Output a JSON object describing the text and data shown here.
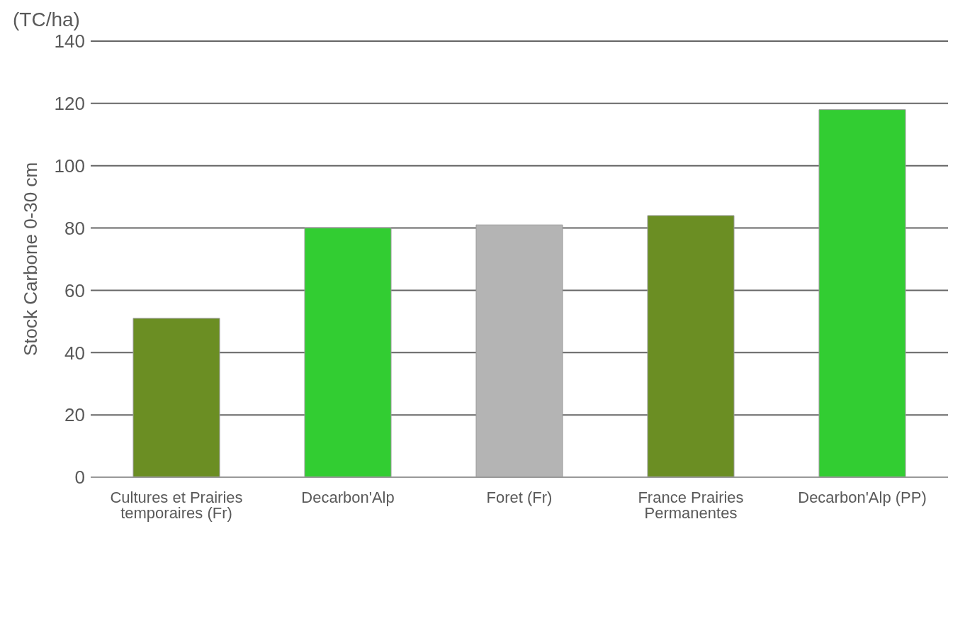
{
  "chart_data": {
    "type": "bar",
    "ylabel": "Stock Carbone  0-30 cm",
    "annotations": [
      "(TC/ha)"
    ],
    "categories": [
      "Cultures et Prairies temporaires (Fr)",
      "Decarbon'Alp",
      "Foret (Fr)",
      "France Prairies Permanentes",
      "Decarbon'Alp (PP)"
    ],
    "values": [
      51,
      80,
      81,
      84,
      118
    ],
    "colors": [
      "#6b8e23",
      "#32cd32",
      "#b4b4b4",
      "#6b8e23",
      "#32cd32"
    ],
    "ylim": [
      0,
      140
    ],
    "yticks": [
      0,
      20,
      40,
      60,
      80,
      100,
      120,
      140
    ],
    "grid": "y",
    "legend": false
  }
}
